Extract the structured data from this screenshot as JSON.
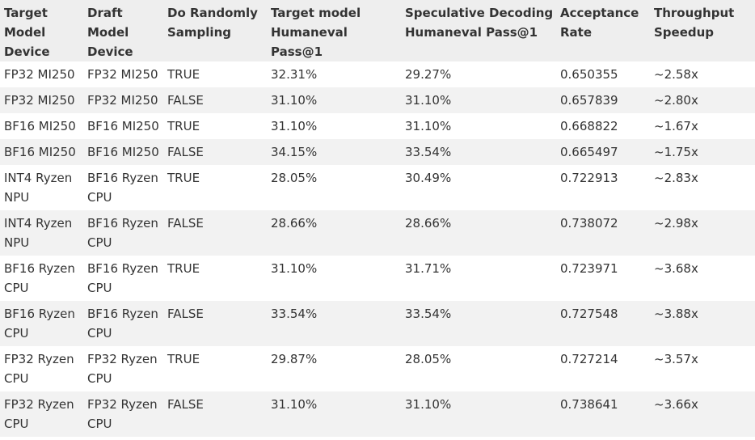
{
  "table": {
    "headers": [
      "Target Model Device",
      "Draft Model Device",
      "Do Randomly Sampling",
      "Target model Humaneval Pass@1",
      "Speculative Decoding Humaneval Pass@1",
      "Acceptance Rate",
      "Throughput Speedup"
    ],
    "rows": [
      [
        "FP32 MI250",
        "FP32 MI250",
        "TRUE",
        "32.31%",
        "29.27%",
        "0.650355",
        "~2.58x"
      ],
      [
        "FP32 MI250",
        "FP32 MI250",
        "FALSE",
        "31.10%",
        "31.10%",
        "0.657839",
        "~2.80x"
      ],
      [
        "BF16 MI250",
        "BF16 MI250",
        "TRUE",
        "31.10%",
        "31.10%",
        "0.668822",
        "~1.67x"
      ],
      [
        "BF16 MI250",
        "BF16 MI250",
        "FALSE",
        "34.15%",
        "33.54%",
        "0.665497",
        "~1.75x"
      ],
      [
        "INT4 Ryzen NPU",
        "BF16 Ryzen CPU",
        "TRUE",
        "28.05%",
        "30.49%",
        "0.722913",
        "~2.83x"
      ],
      [
        "INT4 Ryzen NPU",
        "BF16 Ryzen CPU",
        "FALSE",
        "28.66%",
        "28.66%",
        "0.738072",
        "~2.98x"
      ],
      [
        "BF16 Ryzen CPU",
        "BF16 Ryzen CPU",
        "TRUE",
        "31.10%",
        "31.71%",
        "0.723971",
        "~3.68x"
      ],
      [
        "BF16 Ryzen CPU",
        "BF16 Ryzen CPU",
        "FALSE",
        "33.54%",
        "33.54%",
        "0.727548",
        "~3.88x"
      ],
      [
        "FP32 Ryzen CPU",
        "FP32 Ryzen CPU",
        "TRUE",
        "29.87%",
        "28.05%",
        "0.727214",
        "~3.57x"
      ],
      [
        "FP32 Ryzen CPU",
        "FP32 Ryzen CPU",
        "FALSE",
        "31.10%",
        "31.10%",
        "0.738641",
        "~3.66x"
      ]
    ]
  }
}
